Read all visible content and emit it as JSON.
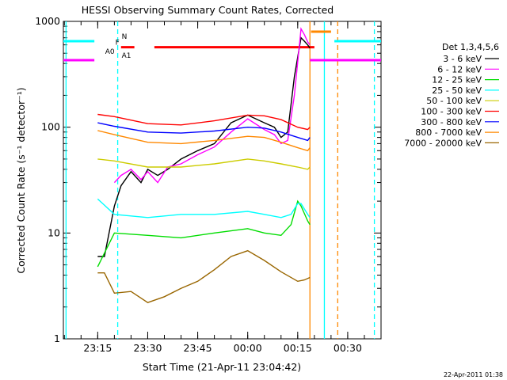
{
  "chart_data": {
    "type": "line",
    "title": "HESSI Observing Summary Count Rates, Corrected",
    "xlabel": "Start Time (21-Apr-11 23:04:42)",
    "ylabel": "Corrected Count Rate (s⁻¹ detector⁻¹)",
    "y_scale": "log",
    "ylim": [
      1,
      1000
    ],
    "xlim": [
      "23:04:42",
      "00:40:00"
    ],
    "x_tick_labels": [
      "23:15",
      "23:30",
      "23:45",
      "00:00",
      "00:15",
      "00:30"
    ],
    "x_tick_times": [
      "23:15",
      "23:30",
      "23:45",
      "00:00",
      "00:15",
      "00:30"
    ],
    "y_tick_labels": [
      "1",
      "10",
      "100",
      "1000"
    ],
    "y_tick_values": [
      1,
      10,
      100,
      1000
    ],
    "legend_title": "Det 1,3,4,5,6",
    "legend_position": "right",
    "timestamp": "22-Apr-2011 01:38",
    "series": [
      {
        "name": "3 - 6 keV",
        "color": "#000000",
        "x": [
          "23:15",
          "23:17",
          "23:20",
          "23:22",
          "23:25",
          "23:28",
          "23:30",
          "23:33",
          "23:36",
          "23:40",
          "23:45",
          "23:50",
          "23:55",
          "00:00",
          "00:05",
          "00:08",
          "00:10",
          "00:12",
          "00:14",
          "00:16",
          "00:17",
          "00:18",
          "00:18:40"
        ],
        "y": [
          6,
          6,
          18,
          28,
          38,
          30,
          40,
          35,
          40,
          50,
          60,
          70,
          110,
          130,
          110,
          100,
          80,
          90,
          300,
          700,
          650,
          600,
          560
        ]
      },
      {
        "name": "6 - 12 keV",
        "color": "#ff00ff",
        "x": [
          "23:20",
          "23:22",
          "23:25",
          "23:28",
          "23:30",
          "23:33",
          "23:36",
          "23:40",
          "23:45",
          "23:50",
          "23:55",
          "00:00",
          "00:05",
          "00:08",
          "00:10",
          "00:12",
          "00:14",
          "00:16",
          "00:17",
          "00:18",
          "00:18:40"
        ],
        "y": [
          30,
          35,
          40,
          32,
          38,
          30,
          42,
          45,
          55,
          65,
          90,
          120,
          95,
          85,
          70,
          75,
          200,
          850,
          750,
          640,
          600
        ]
      },
      {
        "name": "12 - 25 keV",
        "color": "#00dd00",
        "x": [
          "23:15",
          "23:20",
          "23:30",
          "23:40",
          "23:50",
          "00:00",
          "00:05",
          "00:10",
          "00:13",
          "00:15",
          "00:16",
          "00:18",
          "00:18:40"
        ],
        "y": [
          4.8,
          10,
          9.5,
          9,
          10,
          11,
          10,
          9.5,
          12,
          20,
          18,
          13,
          12
        ]
      },
      {
        "name": "25 - 50 keV",
        "color": "#00ffff",
        "x": [
          "23:15",
          "23:20",
          "23:30",
          "23:40",
          "23:50",
          "00:00",
          "00:05",
          "00:10",
          "00:13",
          "00:15",
          "00:16",
          "00:18",
          "00:18:40"
        ],
        "y": [
          21,
          15,
          14,
          15,
          15,
          16,
          15,
          14,
          15,
          19,
          19,
          15,
          14
        ]
      },
      {
        "name": "50 - 100 keV",
        "color": "#cccc00",
        "x": [
          "23:15",
          "23:20",
          "23:30",
          "23:40",
          "23:50",
          "00:00",
          "00:05",
          "00:10",
          "00:15",
          "00:18",
          "00:18:40"
        ],
        "y": [
          50,
          48,
          42,
          42,
          45,
          50,
          48,
          45,
          42,
          40,
          42
        ]
      },
      {
        "name": "100 - 300 keV",
        "color": "#ff0000",
        "x": [
          "23:15",
          "23:20",
          "23:30",
          "23:40",
          "23:50",
          "00:00",
          "00:05",
          "00:10",
          "00:15",
          "00:18",
          "00:18:40"
        ],
        "y": [
          132,
          126,
          108,
          105,
          115,
          130,
          128,
          118,
          100,
          95,
          100
        ]
      },
      {
        "name": "300 - 800 keV",
        "color": "#0000ff",
        "x": [
          "23:15",
          "23:20",
          "23:30",
          "23:40",
          "23:50",
          "00:00",
          "00:05",
          "00:10",
          "00:15",
          "00:18",
          "00:18:40"
        ],
        "y": [
          110,
          102,
          90,
          88,
          92,
          100,
          98,
          90,
          80,
          75,
          80
        ]
      },
      {
        "name": "800 - 7000 keV",
        "color": "#ff8800",
        "x": [
          "23:15",
          "23:20",
          "23:30",
          "23:40",
          "23:50",
          "00:00",
          "00:05",
          "00:10",
          "00:15",
          "00:18",
          "00:18:40"
        ],
        "y": [
          93,
          85,
          72,
          70,
          75,
          82,
          80,
          72,
          64,
          60,
          64
        ]
      },
      {
        "name": "7000 - 20000 keV",
        "color": "#996600",
        "x": [
          "23:15",
          "23:17",
          "23:20",
          "23:25",
          "23:30",
          "23:35",
          "23:40",
          "23:45",
          "23:50",
          "23:55",
          "00:00",
          "00:05",
          "00:10",
          "00:15",
          "00:17",
          "00:18:40"
        ],
        "y": [
          4.2,
          4.2,
          2.7,
          2.8,
          2.2,
          2.5,
          3.0,
          3.5,
          4.5,
          6.0,
          6.8,
          5.5,
          4.3,
          3.5,
          3.6,
          3.8
        ]
      }
    ],
    "markers": [
      {
        "label": "N",
        "color": "#00ffff",
        "level": 650,
        "spans": [
          [
            "23:04:42",
            "23:14:00"
          ],
          [
            "00:26:00",
            "00:40:00"
          ]
        ]
      },
      {
        "label": "F",
        "color": "#ff0000",
        "level": 570,
        "spans": [
          [
            "23:22:00",
            "23:26:00"
          ],
          [
            "23:32:00",
            "00:20:00"
          ]
        ]
      },
      {
        "label": "A0",
        "color": "#ff0000",
        "level": 470,
        "spans": []
      },
      {
        "label": "A1",
        "color": "#ff00ff",
        "level": 430,
        "spans": [
          [
            "23:04:42",
            "23:14:00"
          ],
          [
            "00:18:40",
            "00:40:00"
          ]
        ]
      },
      {
        "label": "",
        "color": "#ff8800",
        "level": 800,
        "spans": [
          [
            "00:19:00",
            "00:25:00"
          ]
        ]
      }
    ],
    "vlines": [
      {
        "time": "23:05:30",
        "color": "#00ffff",
        "style": "solid"
      },
      {
        "time": "23:21:00",
        "color": "#00ffff",
        "style": "dashed"
      },
      {
        "time": "00:18:40",
        "color": "#ff8800",
        "style": "solid"
      },
      {
        "time": "00:23:00",
        "color": "#00ffff",
        "style": "solid"
      },
      {
        "time": "00:27:00",
        "color": "#ff8800",
        "style": "dashed"
      },
      {
        "time": "00:38:00",
        "color": "#00ffff",
        "style": "dashed"
      }
    ]
  }
}
